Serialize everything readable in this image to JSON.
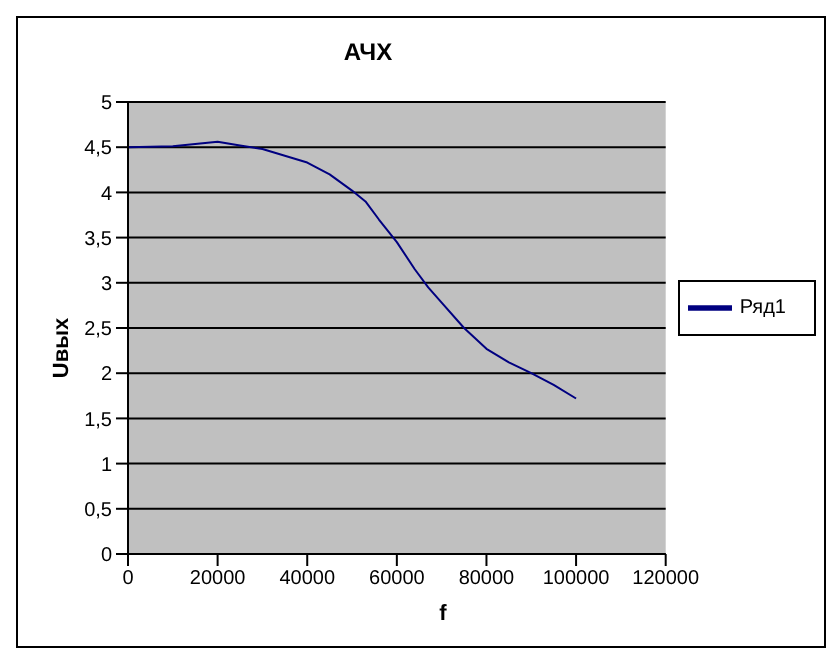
{
  "chart_data": {
    "type": "line",
    "title": "АЧХ",
    "xlabel": "f",
    "ylabel": "Uвых",
    "x": [
      0,
      10000,
      20000,
      25000,
      30000,
      40000,
      45000,
      50000,
      53000,
      56000,
      60000,
      64000,
      67000,
      70000,
      75000,
      80000,
      85000,
      90000,
      95000,
      100000
    ],
    "series": [
      {
        "name": "Ряд1",
        "color": "#000080",
        "values": [
          4.5,
          4.51,
          4.56,
          4.52,
          4.48,
          4.33,
          4.2,
          4.02,
          3.9,
          3.7,
          3.45,
          3.15,
          2.95,
          2.78,
          2.5,
          2.27,
          2.12,
          2.0,
          1.87,
          1.72
        ]
      }
    ],
    "xlim": [
      0,
      120000
    ],
    "xticks": [
      0,
      20000,
      40000,
      60000,
      80000,
      100000,
      120000
    ],
    "ylim": [
      0,
      5
    ],
    "yticks": [
      0,
      {
        "value": 0.5,
        "label": "0,5"
      },
      1,
      {
        "value": 1.5,
        "label": "1,5"
      },
      2,
      {
        "value": 2.5,
        "label": "2,5"
      },
      3,
      {
        "value": 3.5,
        "label": "3,5"
      },
      4,
      {
        "value": 4.5,
        "label": "4,5"
      },
      5
    ],
    "grid": "y",
    "legend": "right",
    "marker": "none",
    "line_style": "solid"
  }
}
